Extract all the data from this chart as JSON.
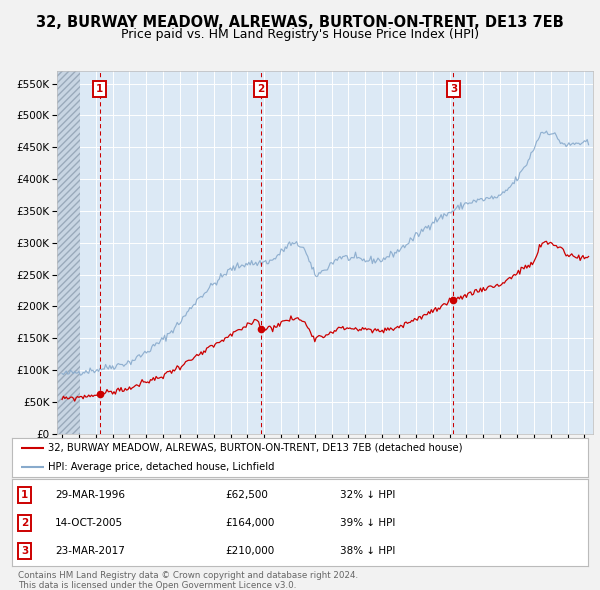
{
  "title": "32, BURWAY MEADOW, ALREWAS, BURTON-ON-TRENT, DE13 7EB",
  "subtitle": "Price paid vs. HM Land Registry's House Price Index (HPI)",
  "title_fontsize": 10.5,
  "subtitle_fontsize": 9,
  "background_color": "#f2f2f2",
  "plot_bg_color": "#dce9f5",
  "grid_color": "#ffffff",
  "sale_color": "#cc0000",
  "hpi_color": "#88aacc",
  "ylim": [
    0,
    570000
  ],
  "yticks": [
    0,
    50000,
    100000,
    150000,
    200000,
    250000,
    300000,
    350000,
    400000,
    450000,
    500000,
    550000
  ],
  "ytick_labels": [
    "£0",
    "£50K",
    "£100K",
    "£150K",
    "£200K",
    "£250K",
    "£300K",
    "£350K",
    "£400K",
    "£450K",
    "£500K",
    "£550K"
  ],
  "xlim_start": 1993.7,
  "xlim_end": 2025.5,
  "hatch_end": 1995.08,
  "sales": [
    {
      "date_num": 1996.23,
      "price": 62500,
      "label": "1"
    },
    {
      "date_num": 2005.79,
      "price": 164000,
      "label": "2"
    },
    {
      "date_num": 2017.23,
      "price": 210000,
      "label": "3"
    }
  ],
  "vlines": [
    1996.23,
    2005.79,
    2017.23
  ],
  "legend_sale_label": "32, BURWAY MEADOW, ALREWAS, BURTON-ON-TRENT, DE13 7EB (detached house)",
  "legend_hpi_label": "HPI: Average price, detached house, Lichfield",
  "table": [
    {
      "num": "1",
      "date": "29-MAR-1996",
      "price": "£62,500",
      "change": "32% ↓ HPI"
    },
    {
      "num": "2",
      "date": "14-OCT-2005",
      "price": "£164,000",
      "change": "39% ↓ HPI"
    },
    {
      "num": "3",
      "date": "23-MAR-2017",
      "price": "£210,000",
      "change": "38% ↓ HPI"
    }
  ],
  "footnote": "Contains HM Land Registry data © Crown copyright and database right 2024.\nThis data is licensed under the Open Government Licence v3.0."
}
